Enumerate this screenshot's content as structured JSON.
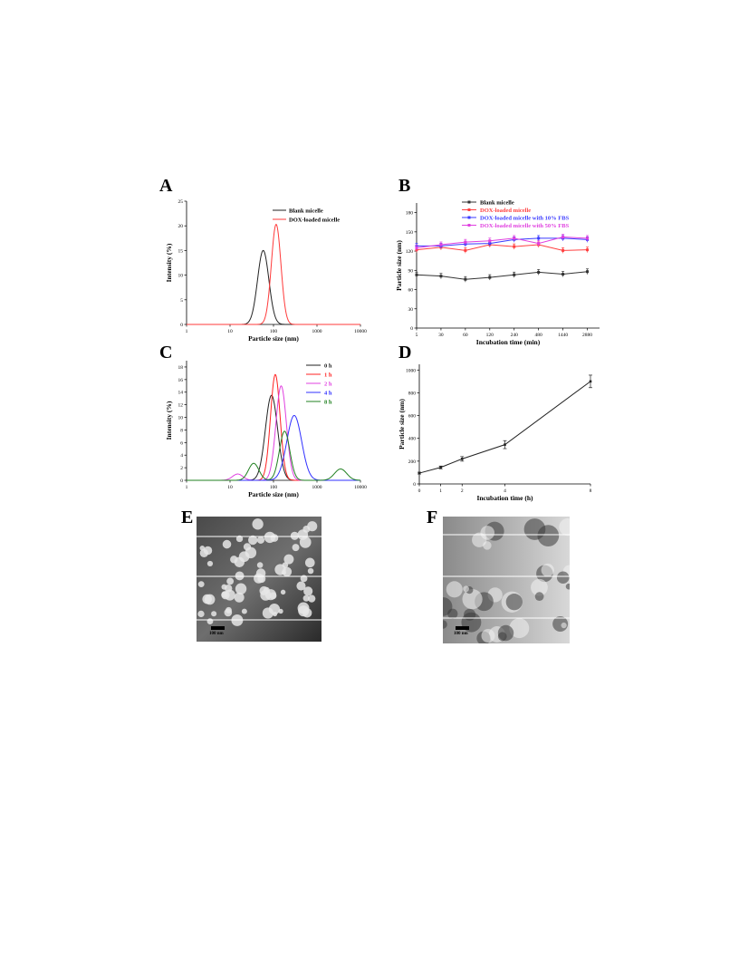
{
  "panels": {
    "A": "A",
    "B": "B",
    "C": "C",
    "D": "D",
    "E": "E",
    "F": "F"
  },
  "chart_data": [
    {
      "id": "A",
      "type": "line",
      "xscale": "log",
      "xlabel": "Particle size (nm)",
      "ylabel": "Intensity (%)",
      "xlim": [
        1,
        10000
      ],
      "ylim": [
        0,
        25
      ],
      "xticks": [
        1,
        10,
        100,
        1000,
        10000
      ],
      "xticklabels": [
        "1",
        "10",
        "100",
        "1000",
        "10000"
      ],
      "yticks": [
        0,
        5,
        10,
        15,
        20,
        25
      ],
      "legend_position": "top-right",
      "series": [
        {
          "name": "Blank micelle",
          "color": "#222222",
          "peak_x": 58,
          "peak_y": 15,
          "width": 0.13
        },
        {
          "name": "DOX-loaded micelle",
          "color": "#ff3a3a",
          "peak_x": 115,
          "peak_y": 20.3,
          "width": 0.11
        }
      ]
    },
    {
      "id": "B",
      "type": "line",
      "xscale": "category",
      "xlabel": "Incubation time (min)",
      "ylabel": "Particle size (nm)",
      "categories": [
        "5",
        "30",
        "60",
        "120",
        "240",
        "480",
        "1440",
        "2880"
      ],
      "ylim": [
        0,
        195
      ],
      "yticks": [
        0,
        30,
        60,
        90,
        120,
        150,
        180
      ],
      "legend_position": "top",
      "series": [
        {
          "name": "Blank micelle",
          "color": "#333333",
          "values": [
            83,
            81,
            76,
            79,
            83,
            87,
            84,
            88
          ]
        },
        {
          "name": "DOX-loaded micelle",
          "color": "#ff4040",
          "values": [
            122,
            126,
            121,
            130,
            127,
            130,
            121,
            122
          ]
        },
        {
          "name": "DOX-loaded micelle with 10% FBS",
          "color": "#3a3aff",
          "values": [
            128,
            128,
            131,
            132,
            138,
            140,
            140,
            138
          ]
        },
        {
          "name": "DOX-loaded micelle with 50% FBS",
          "color": "#e040e0",
          "values": [
            125,
            130,
            134,
            136,
            140,
            132,
            142,
            140
          ]
        }
      ]
    },
    {
      "id": "C",
      "type": "line",
      "xscale": "log",
      "xlabel": "Particle size (nm)",
      "ylabel": "Intensity (%)",
      "xlim": [
        1,
        10000
      ],
      "ylim": [
        0,
        19
      ],
      "xticks": [
        1,
        10,
        100,
        1000,
        10000
      ],
      "xticklabels": [
        "1",
        "10",
        "100",
        "1000",
        "10000"
      ],
      "yticks": [
        0,
        2,
        4,
        6,
        8,
        10,
        12,
        14,
        16,
        18
      ],
      "legend_position": "top-right",
      "series": [
        {
          "name": "0 h",
          "color": "#222222",
          "peaks": [
            [
              90,
              13.5,
              0.14
            ]
          ]
        },
        {
          "name": "1 h",
          "color": "#ff2020",
          "peaks": [
            [
              110,
              16.8,
              0.11
            ]
          ]
        },
        {
          "name": "2 h",
          "color": "#e040e0",
          "peaks": [
            [
              15,
              1.0,
              0.12
            ],
            [
              150,
              15,
              0.12
            ]
          ]
        },
        {
          "name": "4 h",
          "color": "#3030ff",
          "peaks": [
            [
              300,
              10.3,
              0.17
            ]
          ]
        },
        {
          "name": "8 h",
          "color": "#208020",
          "peaks": [
            [
              35,
              2.7,
              0.12
            ],
            [
              180,
              7.8,
              0.12
            ],
            [
              3500,
              1.8,
              0.14
            ]
          ]
        }
      ]
    },
    {
      "id": "D",
      "type": "line",
      "xscale": "category",
      "xlabel": "Incubation time (h)",
      "ylabel": "Particle size (nm)",
      "categories": [
        "0",
        "1",
        "2",
        "4",
        "8"
      ],
      "ylim": [
        0,
        1050
      ],
      "yticks": [
        0,
        200,
        400,
        600,
        800,
        1000
      ],
      "series": [
        {
          "name": "",
          "color": "#222222",
          "values": [
            95,
            145,
            220,
            345,
            900
          ],
          "errors": [
            8,
            12,
            20,
            35,
            55
          ]
        }
      ]
    }
  ],
  "tem": {
    "E": {
      "scale_label": "100 nm"
    },
    "F": {
      "scale_label": "100 nm"
    }
  }
}
